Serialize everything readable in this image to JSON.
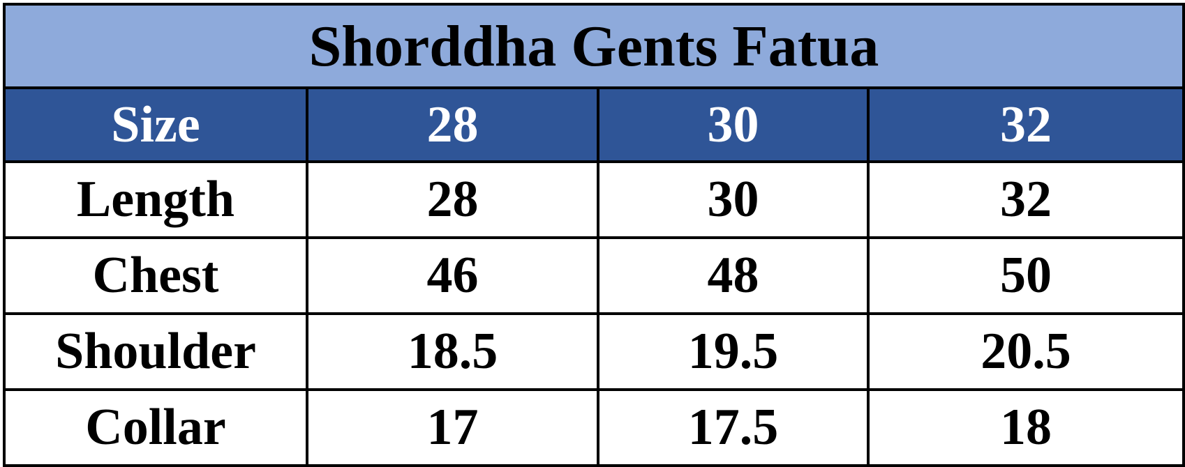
{
  "table": {
    "title": "Shorddha Gents Fatua",
    "header": [
      "Size",
      "28",
      "30",
      "32"
    ],
    "rows": [
      [
        "Length",
        "28",
        "30",
        "32"
      ],
      [
        "Chest",
        "46",
        "48",
        "50"
      ],
      [
        "Shoulder",
        "18.5",
        "19.5",
        "20.5"
      ],
      [
        "Collar",
        "17",
        "17.5",
        "18"
      ]
    ]
  }
}
